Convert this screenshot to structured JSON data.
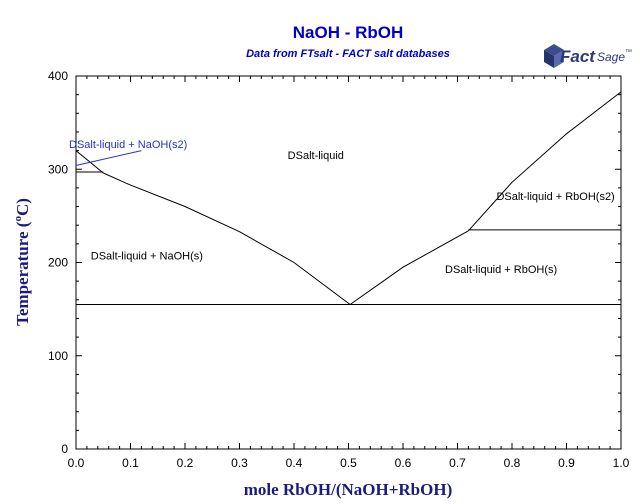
{
  "colors": {
    "title": "#0000cc",
    "axis_title": "#1a1a80",
    "lines": "#000000",
    "label_blue": "#2233cc",
    "logo": "#2a3a7a"
  },
  "logo": {
    "fact": "Fact",
    "sage": "Sage",
    "tm": "™",
    "icon": "factsage-cube-icon"
  },
  "chart_data": {
    "type": "line",
    "title": "NaOH - RbOH",
    "subtitle": "Data from FTsalt - FACT salt databases",
    "xlabel": "mole RbOH/(NaOH+RbOH)",
    "ylabel": "Temperature (°C)",
    "ylabel_parts": {
      "pre": "Temperature ",
      "open": "(",
      "deg": "o",
      "post": "C)"
    },
    "xlim": [
      0,
      1
    ],
    "ylim": [
      0,
      400
    ],
    "xticks": [
      0.0,
      0.1,
      0.2,
      0.3,
      0.4,
      0.5,
      0.6,
      0.7,
      0.8,
      0.9,
      1.0
    ],
    "xtick_labels": [
      "0.0",
      "0.1",
      "0.2",
      "0.3",
      "0.4",
      "0.5",
      "0.6",
      "0.7",
      "0.8",
      "0.9",
      "1.0"
    ],
    "yticks": [
      0,
      100,
      200,
      300,
      400
    ],
    "ytick_labels": [
      "0",
      "100",
      "200",
      "300",
      "400"
    ],
    "series": [
      {
        "points": [
          [
            0.0,
            320
          ],
          [
            0.05,
            296
          ]
        ]
      },
      {
        "points": [
          [
            0.05,
            296
          ],
          [
            0.1,
            283
          ],
          [
            0.2,
            260
          ],
          [
            0.3,
            233
          ],
          [
            0.4,
            200
          ],
          [
            0.503,
            155
          ]
        ]
      },
      {
        "points": [
          [
            0.503,
            155
          ],
          [
            0.6,
            195
          ],
          [
            0.72,
            234
          ]
        ]
      },
      {
        "points": [
          [
            0.72,
            234
          ],
          [
            0.8,
            286
          ],
          [
            0.9,
            338
          ],
          [
            1.0,
            383
          ]
        ]
      },
      {
        "points": [
          [
            0.0,
            297
          ],
          [
            0.05,
            297
          ]
        ]
      },
      {
        "points": [
          [
            0.0,
            155
          ],
          [
            1.0,
            155
          ]
        ]
      },
      {
        "points": [
          [
            0.72,
            235
          ],
          [
            1.0,
            235
          ]
        ]
      }
    ],
    "annotations": [
      {
        "text": "DSalt-liquid + NaOH(s2)",
        "x": 0.0,
        "y": 323,
        "style": "blue",
        "leader": [
          [
            0.0,
            304
          ],
          [
            0.12,
            320
          ]
        ]
      },
      {
        "text": "DSalt-liquid",
        "x": 0.44,
        "y": 311,
        "style": "black"
      },
      {
        "text": "DSalt-liquid + RbOH(s2)",
        "x": 0.88,
        "y": 267,
        "style": "black"
      },
      {
        "text": "DSalt-liquid + NaOH(s)",
        "x": 0.13,
        "y": 203,
        "style": "black"
      },
      {
        "text": "DSalt-liquid + RbOH(s)",
        "x": 0.78,
        "y": 189,
        "style": "black"
      }
    ]
  }
}
